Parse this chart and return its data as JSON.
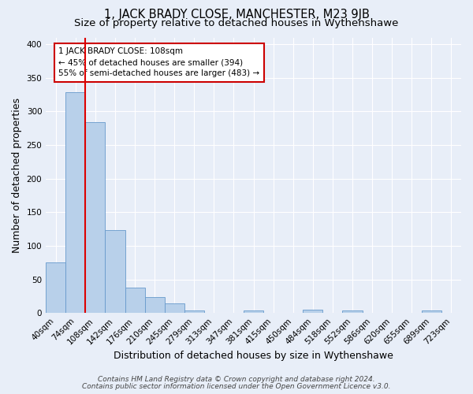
{
  "title": "1, JACK BRADY CLOSE, MANCHESTER, M23 9JB",
  "subtitle": "Size of property relative to detached houses in Wythenshawe",
  "xlabel": "Distribution of detached houses by size in Wythenshawe",
  "ylabel": "Number of detached properties",
  "footnote1": "Contains HM Land Registry data © Crown copyright and database right 2024.",
  "footnote2": "Contains public sector information licensed under the Open Government Licence v3.0.",
  "bin_labels": [
    "40sqm",
    "74sqm",
    "108sqm",
    "142sqm",
    "176sqm",
    "210sqm",
    "245sqm",
    "279sqm",
    "313sqm",
    "347sqm",
    "381sqm",
    "415sqm",
    "450sqm",
    "484sqm",
    "518sqm",
    "552sqm",
    "586sqm",
    "620sqm",
    "655sqm",
    "689sqm",
    "723sqm"
  ],
  "bar_values": [
    75,
    328,
    284,
    123,
    38,
    24,
    14,
    4,
    0,
    0,
    4,
    0,
    0,
    5,
    0,
    4,
    0,
    0,
    0,
    4,
    0
  ],
  "bar_color": "#b8d0ea",
  "bar_edge_color": "#6699cc",
  "red_line_x": 1.5,
  "red_line_color": "#dd0000",
  "annotation_text": "1 JACK BRADY CLOSE: 108sqm\n← 45% of detached houses are smaller (394)\n55% of semi-detached houses are larger (483) →",
  "annotation_box_facecolor": "#ffffff",
  "annotation_box_edgecolor": "#cc0000",
  "ylim": [
    0,
    410
  ],
  "yticks": [
    0,
    50,
    100,
    150,
    200,
    250,
    300,
    350,
    400
  ],
  "background_color": "#e8eef8",
  "grid_color": "#ffffff",
  "title_fontsize": 10.5,
  "subtitle_fontsize": 9.5,
  "axis_label_fontsize": 9,
  "tick_fontsize": 7.5,
  "annot_fontsize": 7.5,
  "footnote_fontsize": 6.5
}
